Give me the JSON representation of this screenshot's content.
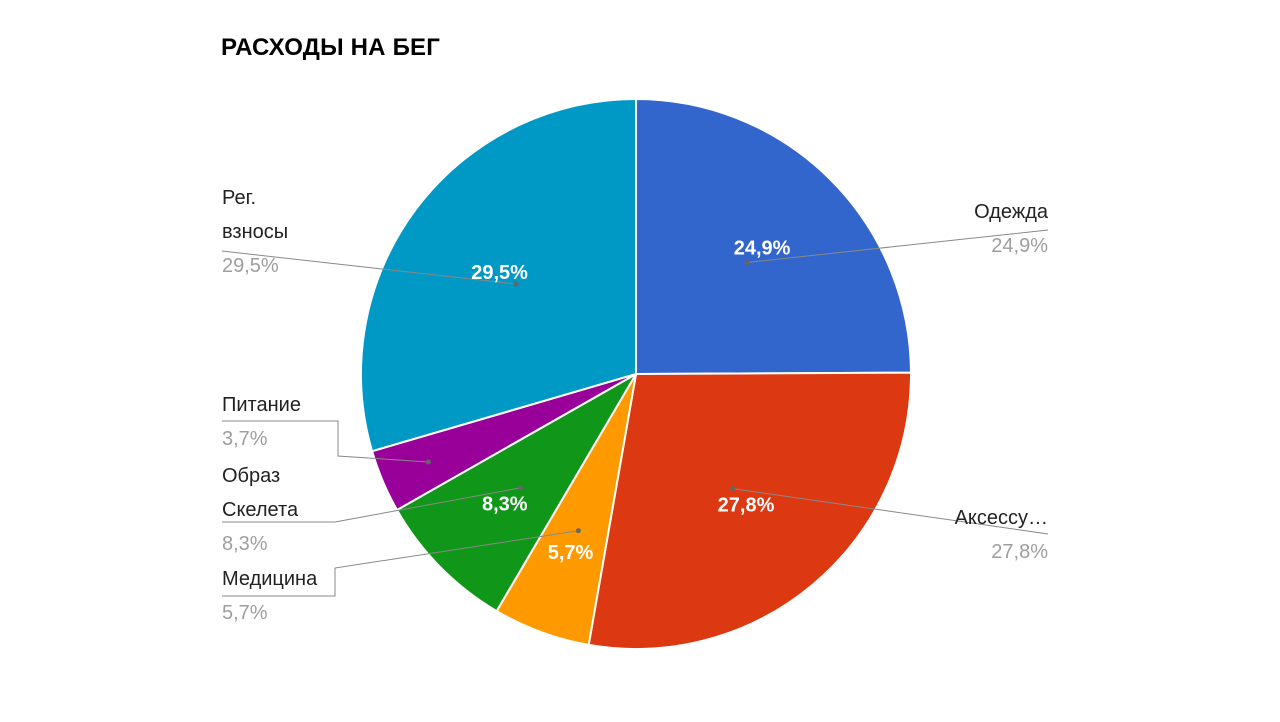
{
  "chart_data": {
    "type": "pie",
    "title": "РАСХОДЫ НА БЕГ",
    "start_angle_deg": 0,
    "direction": "clockwise",
    "slices": [
      {
        "label": "Одежда",
        "value": 24.9,
        "percent_label": "24,9%",
        "color": "#3366cc"
      },
      {
        "label": "Аксессу…",
        "value": 27.8,
        "percent_label": "27,8%",
        "color": "#dc3912"
      },
      {
        "label": "Медицина",
        "value": 5.7,
        "percent_label": "5,7%",
        "color": "#ff9900"
      },
      {
        "label": "Образ Скелета",
        "value": 8.3,
        "percent_label": "8,3%",
        "color": "#109618"
      },
      {
        "label": "Питание",
        "value": 3.7,
        "percent_label": "3,7%",
        "color": "#990099"
      },
      {
        "label": "Рег. взносы",
        "value": 29.5,
        "percent_label": "29,5%",
        "color": "#0099c6"
      }
    ]
  },
  "colors": {
    "label_text": "#222222",
    "value_text": "#9e9e9e",
    "leader_line": "#888888"
  }
}
